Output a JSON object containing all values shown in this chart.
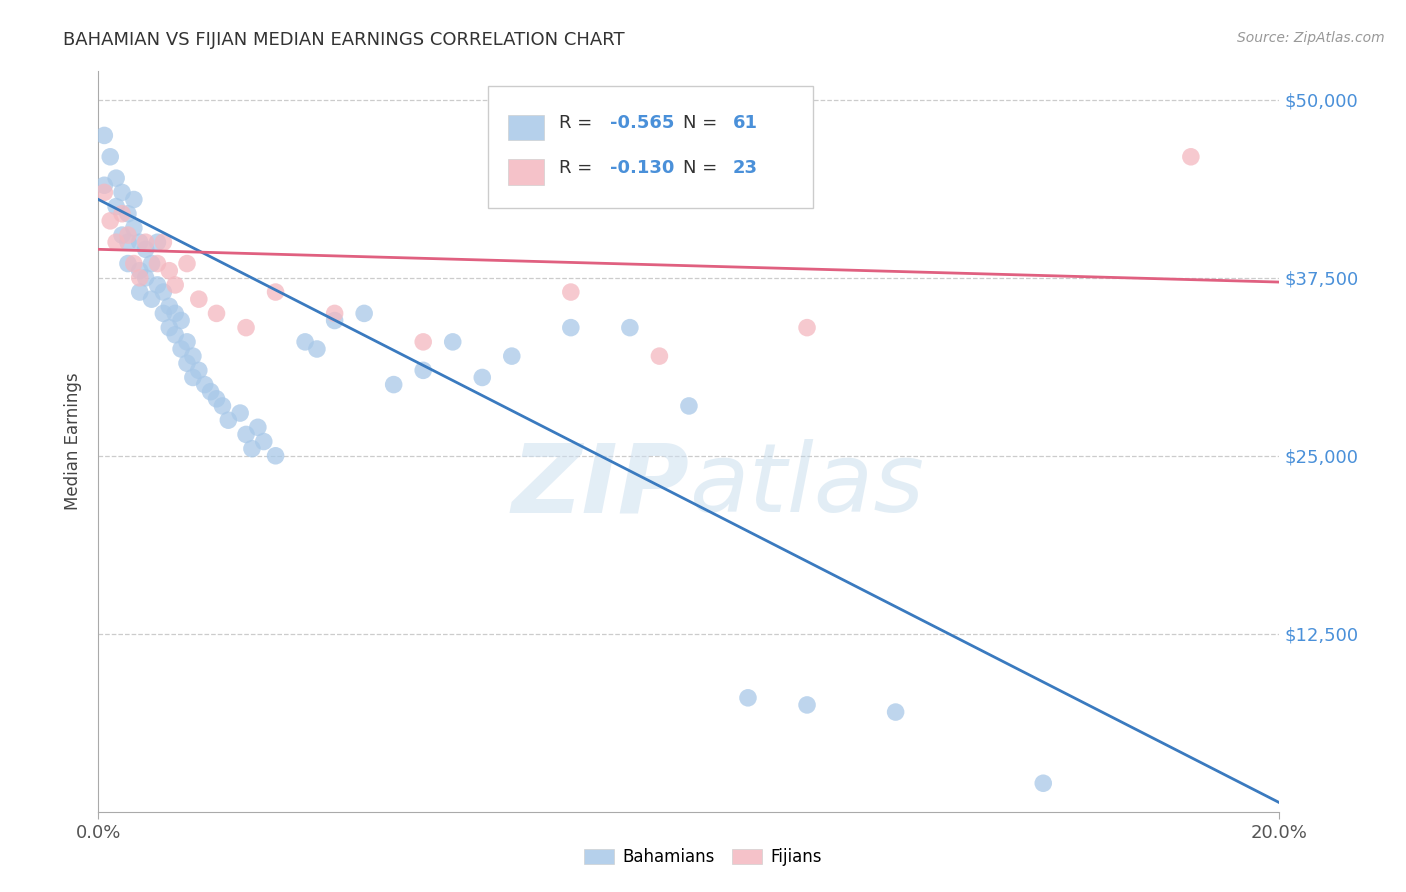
{
  "title": "BAHAMIAN VS FIJIAN MEDIAN EARNINGS CORRELATION CHART",
  "source": "Source: ZipAtlas.com",
  "ylabel": "Median Earnings",
  "x_min": 0.0,
  "x_max": 0.2,
  "y_min": 0,
  "y_max": 52000,
  "ytick_values": [
    12500,
    25000,
    37500,
    50000
  ],
  "ytick_right_labels": [
    "$12,500",
    "$25,000",
    "$37,500",
    "$50,000"
  ],
  "grid_ytick_values": [
    12500,
    25000,
    37500,
    50000
  ],
  "xtick_values": [
    0.0,
    0.2
  ],
  "xtick_labels": [
    "0.0%",
    "20.0%"
  ],
  "blue_color": "#a8c8e8",
  "pink_color": "#f4b8c0",
  "blue_line_color": "#3a7abf",
  "pink_line_color": "#e06080",
  "blue_r": "-0.565",
  "blue_n": "61",
  "pink_r": "-0.130",
  "pink_n": "23",
  "watermark_zip": "ZIP",
  "watermark_atlas": "atlas",
  "right_label_color": "#4a90d9",
  "background_color": "#ffffff",
  "grid_color": "#cccccc",
  "blue_scatter_x": [
    0.001,
    0.001,
    0.002,
    0.003,
    0.003,
    0.004,
    0.004,
    0.005,
    0.005,
    0.005,
    0.006,
    0.006,
    0.007,
    0.007,
    0.007,
    0.008,
    0.008,
    0.009,
    0.009,
    0.01,
    0.01,
    0.011,
    0.011,
    0.012,
    0.012,
    0.013,
    0.013,
    0.014,
    0.014,
    0.015,
    0.015,
    0.016,
    0.016,
    0.017,
    0.018,
    0.019,
    0.02,
    0.021,
    0.022,
    0.024,
    0.025,
    0.026,
    0.027,
    0.028,
    0.03,
    0.035,
    0.037,
    0.04,
    0.05,
    0.055,
    0.06,
    0.065,
    0.07,
    0.08,
    0.09,
    0.1,
    0.11,
    0.12,
    0.135,
    0.045,
    0.16
  ],
  "blue_scatter_y": [
    47500,
    44000,
    46000,
    44500,
    42500,
    43500,
    40500,
    42000,
    40000,
    38500,
    43000,
    41000,
    40000,
    38000,
    36500,
    39500,
    37500,
    38500,
    36000,
    40000,
    37000,
    36500,
    35000,
    35500,
    34000,
    35000,
    33500,
    34500,
    32500,
    33000,
    31500,
    32000,
    30500,
    31000,
    30000,
    29500,
    29000,
    28500,
    27500,
    28000,
    26500,
    25500,
    27000,
    26000,
    25000,
    33000,
    32500,
    34500,
    30000,
    31000,
    33000,
    30500,
    32000,
    34000,
    34000,
    28500,
    8000,
    7500,
    7000,
    35000,
    2000
  ],
  "pink_scatter_x": [
    0.001,
    0.002,
    0.003,
    0.004,
    0.005,
    0.006,
    0.007,
    0.008,
    0.01,
    0.011,
    0.012,
    0.013,
    0.015,
    0.017,
    0.02,
    0.025,
    0.03,
    0.04,
    0.055,
    0.08,
    0.095,
    0.12,
    0.185
  ],
  "pink_scatter_y": [
    43500,
    41500,
    40000,
    42000,
    40500,
    38500,
    37500,
    40000,
    38500,
    40000,
    38000,
    37000,
    38500,
    36000,
    35000,
    34000,
    36500,
    35000,
    33000,
    36500,
    32000,
    34000,
    46000
  ],
  "blue_trendline_x": [
    0.0,
    0.203
  ],
  "blue_trendline_y": [
    43000,
    0
  ],
  "pink_trendline_x": [
    0.0,
    0.2
  ],
  "pink_trendline_y": [
    39500,
    37200
  ],
  "figsize": [
    14.06,
    8.92
  ],
  "dpi": 100
}
